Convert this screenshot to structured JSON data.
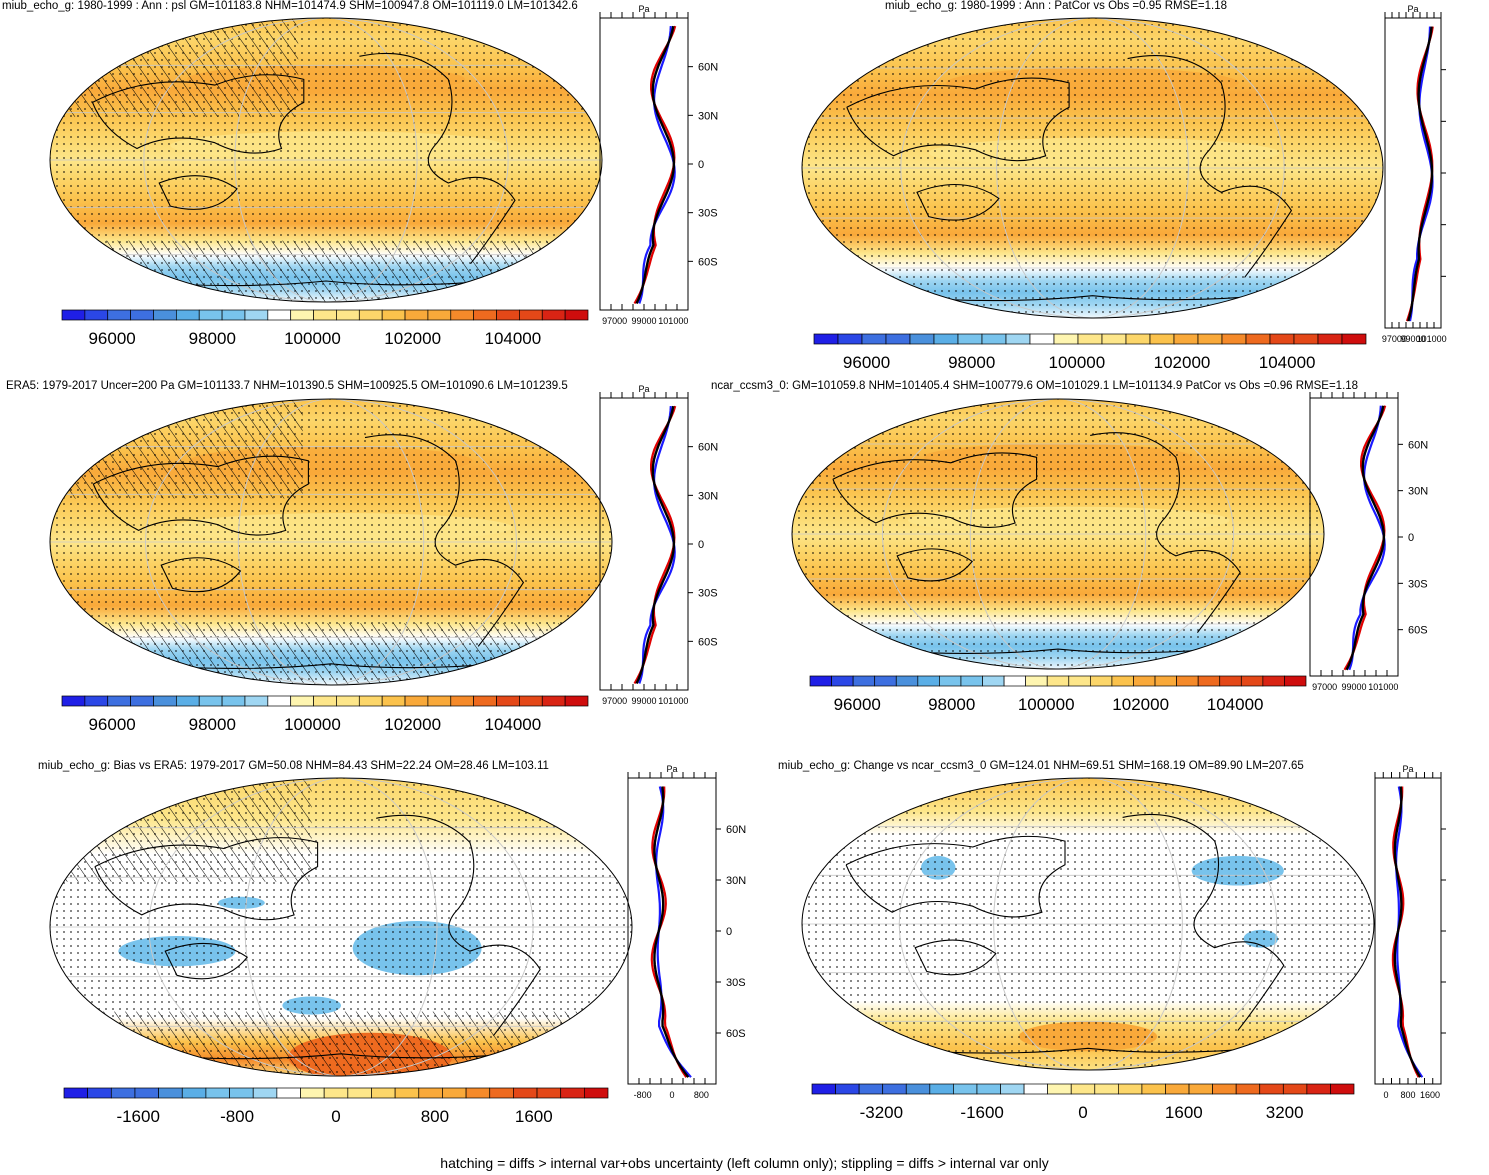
{
  "footer": "hatching = diffs > internal var+obs uncertainty (left column only); stippling = diffs > internal var only",
  "colors": {
    "palette": [
      "#1f1fe6",
      "#2b47e6",
      "#3d6fe0",
      "#4a90dc",
      "#5aaee6",
      "#78c3ec",
      "#9fd6f2",
      "#ffffff",
      "#fef5b0",
      "#fde68a",
      "#fcd66a",
      "#fbc24c",
      "#f9a93a",
      "#f58a2a",
      "#ee6a1f",
      "#e44818",
      "#d92414",
      "#cf0d0d"
    ],
    "black": "#000000",
    "red": "#e00000",
    "blue": "#1a1aff"
  },
  "chart_data": [
    {
      "id": "miub-mean",
      "type": "heatmap",
      "title": "miub_echo_g: 1980-1999 : Ann : psl GM=101183.8 NHM=101474.9 SHM=100947.8 OM=101119.0 LM=101342.6",
      "zonal_unit": "Pa",
      "hatching": true,
      "lat_labels": [
        "60N",
        "30N",
        "0",
        "30S",
        "60S"
      ],
      "zonal_xticks": [
        "97000",
        "99000",
        "101000"
      ],
      "colorbar_ticks": [
        "96000",
        "98000",
        "100000",
        "102000",
        "104000"
      ],
      "color_range": [
        95000,
        105500
      ]
    },
    {
      "id": "miub-patcor",
      "type": "heatmap",
      "title": "miub_echo_g: 1980-1999 : Ann : PatCor vs Obs =0.95 RMSE=1.18",
      "zonal_unit": "Pa",
      "hatching": false,
      "lat_labels": [],
      "zonal_xticks": [
        "97000",
        "99000",
        "101000"
      ],
      "colorbar_ticks": [
        "96000",
        "98000",
        "100000",
        "102000",
        "104000"
      ],
      "color_range": [
        95000,
        105500
      ]
    },
    {
      "id": "era5",
      "type": "heatmap",
      "title": "ERA5: 1979-2017 Uncer=200 Pa GM=101133.7 NHM=101390.5 SHM=100925.5 OM=101090.6 LM=101239.5",
      "zonal_unit": "Pa",
      "hatching": true,
      "lat_labels": [
        "60N",
        "30N",
        "0",
        "30S",
        "60S"
      ],
      "zonal_xticks": [
        "97000",
        "99000",
        "101000"
      ],
      "colorbar_ticks": [
        "96000",
        "98000",
        "100000",
        "102000",
        "104000"
      ],
      "color_range": [
        95000,
        105500
      ]
    },
    {
      "id": "ncar",
      "type": "heatmap",
      "title": "ncar_ccsm3_0: GM=101059.8 NHM=101405.4 SHM=100779.6 OM=101029.1 LM=101134.9 PatCor vs Obs =0.96 RMSE=1.18",
      "zonal_unit": "",
      "hatching": false,
      "lat_labels": [
        "60N",
        "30N",
        "0",
        "30S",
        "60S"
      ],
      "zonal_xticks": [
        "97000",
        "99000",
        "101000"
      ],
      "colorbar_ticks": [
        "96000",
        "98000",
        "100000",
        "102000",
        "104000"
      ],
      "color_range": [
        95000,
        105500
      ]
    },
    {
      "id": "bias",
      "type": "heatmap",
      "title": "miub_echo_g: Bias vs ERA5: 1979-2017 GM=50.08 NHM=84.43 SHM=22.24 OM=28.46 LM=103.11",
      "zonal_unit": "Pa",
      "hatching": true,
      "lat_labels": [
        "60N",
        "30N",
        "0",
        "30S",
        "60S"
      ],
      "zonal_xticks": [
        "-800",
        "0",
        "800"
      ],
      "colorbar_ticks": [
        "-1600",
        "-800",
        "0",
        "800",
        "1600"
      ],
      "color_range": [
        -2200,
        2200
      ]
    },
    {
      "id": "change",
      "type": "heatmap",
      "title": "miub_echo_g: Change vs ncar_ccsm3_0 GM=124.01 NHM=69.51 SHM=168.19 OM=89.90 LM=207.65",
      "zonal_unit": "Pa",
      "hatching": false,
      "lat_labels": [],
      "zonal_xticks": [
        "0",
        "800",
        "1600"
      ],
      "colorbar_ticks": [
        "-3200",
        "-1600",
        "0",
        "1600",
        "3200"
      ],
      "color_range": [
        -4300,
        4300
      ]
    }
  ]
}
